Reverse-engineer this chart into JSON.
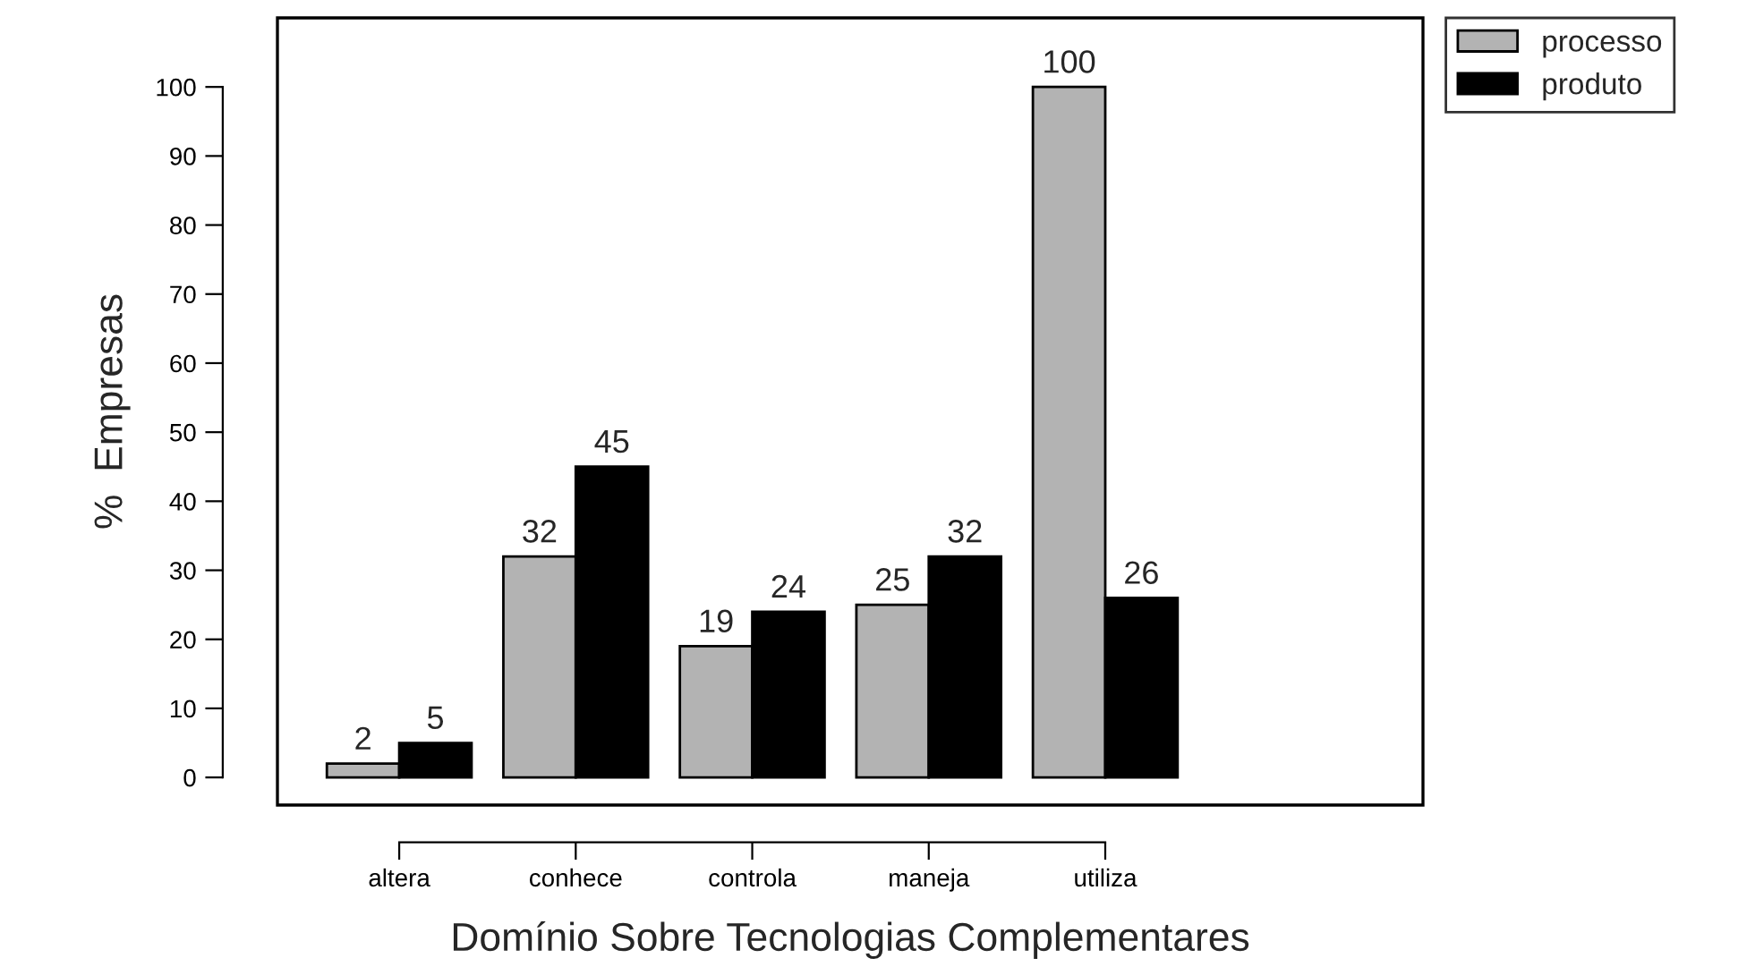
{
  "chart_data": {
    "type": "bar",
    "xlabel": "Domínio Sobre Tecnologias Complementares",
    "ylabel": "%  Empresas",
    "categories": [
      "altera",
      "conhece",
      "controla",
      "maneja",
      "utiliza"
    ],
    "series": [
      {
        "name": "processo",
        "color": "#b3b3b3",
        "values": [
          2,
          32,
          19,
          25,
          100
        ]
      },
      {
        "name": "produto",
        "color": "#000000",
        "values": [
          5,
          45,
          24,
          32,
          26
        ]
      }
    ],
    "ylim": [
      -4,
      110
    ],
    "yticks": [
      0,
      10,
      20,
      30,
      40,
      50,
      60,
      70,
      80,
      90,
      100
    ],
    "data_labels": true,
    "legend": "top right",
    "grid": false
  }
}
